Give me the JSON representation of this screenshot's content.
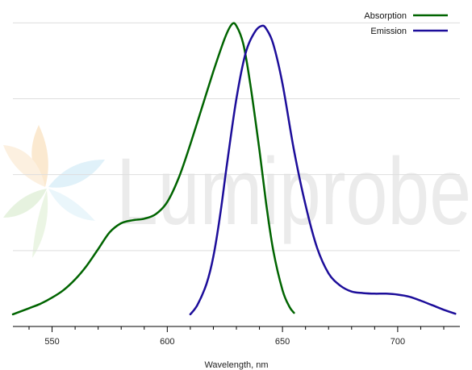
{
  "chart_data": {
    "type": "line",
    "title": "",
    "xlabel": "Wavelength, nm",
    "ylabel": "",
    "xlim": [
      533,
      727
    ],
    "ylim": [
      0,
      1.07
    ],
    "x_ticks": [
      550,
      600,
      650,
      700
    ],
    "x_minor_step": 10,
    "y_grid": [
      0.25,
      0.5,
      0.75,
      1.0
    ],
    "grid": true,
    "legend": "top-right",
    "series": [
      {
        "name": "Absorption",
        "color": "#006400",
        "points": [
          [
            533,
            0.04
          ],
          [
            540,
            0.06
          ],
          [
            545,
            0.075
          ],
          [
            550,
            0.095
          ],
          [
            555,
            0.12
          ],
          [
            560,
            0.155
          ],
          [
            565,
            0.2
          ],
          [
            570,
            0.255
          ],
          [
            575,
            0.31
          ],
          [
            580,
            0.34
          ],
          [
            585,
            0.35
          ],
          [
            590,
            0.355
          ],
          [
            595,
            0.37
          ],
          [
            600,
            0.41
          ],
          [
            605,
            0.49
          ],
          [
            610,
            0.6
          ],
          [
            615,
            0.72
          ],
          [
            620,
            0.84
          ],
          [
            625,
            0.95
          ],
          [
            628,
            0.995
          ],
          [
            630,
            0.99
          ],
          [
            633,
            0.93
          ],
          [
            636,
            0.8
          ],
          [
            640,
            0.58
          ],
          [
            643,
            0.4
          ],
          [
            646,
            0.25
          ],
          [
            650,
            0.12
          ],
          [
            653,
            0.065
          ],
          [
            655,
            0.045
          ]
        ]
      },
      {
        "name": "Emission",
        "color": "#1c0d9a",
        "points": [
          [
            610,
            0.04
          ],
          [
            613,
            0.07
          ],
          [
            617,
            0.14
          ],
          [
            620,
            0.23
          ],
          [
            623,
            0.37
          ],
          [
            626,
            0.54
          ],
          [
            630,
            0.75
          ],
          [
            634,
            0.9
          ],
          [
            638,
            0.97
          ],
          [
            641,
            0.99
          ],
          [
            643,
            0.98
          ],
          [
            646,
            0.93
          ],
          [
            650,
            0.8
          ],
          [
            655,
            0.58
          ],
          [
            660,
            0.4
          ],
          [
            665,
            0.26
          ],
          [
            670,
            0.175
          ],
          [
            675,
            0.135
          ],
          [
            680,
            0.115
          ],
          [
            685,
            0.11
          ],
          [
            690,
            0.108
          ],
          [
            695,
            0.108
          ],
          [
            700,
            0.105
          ],
          [
            705,
            0.098
          ],
          [
            710,
            0.085
          ],
          [
            715,
            0.07
          ],
          [
            720,
            0.055
          ],
          [
            725,
            0.042
          ]
        ]
      }
    ]
  }
}
